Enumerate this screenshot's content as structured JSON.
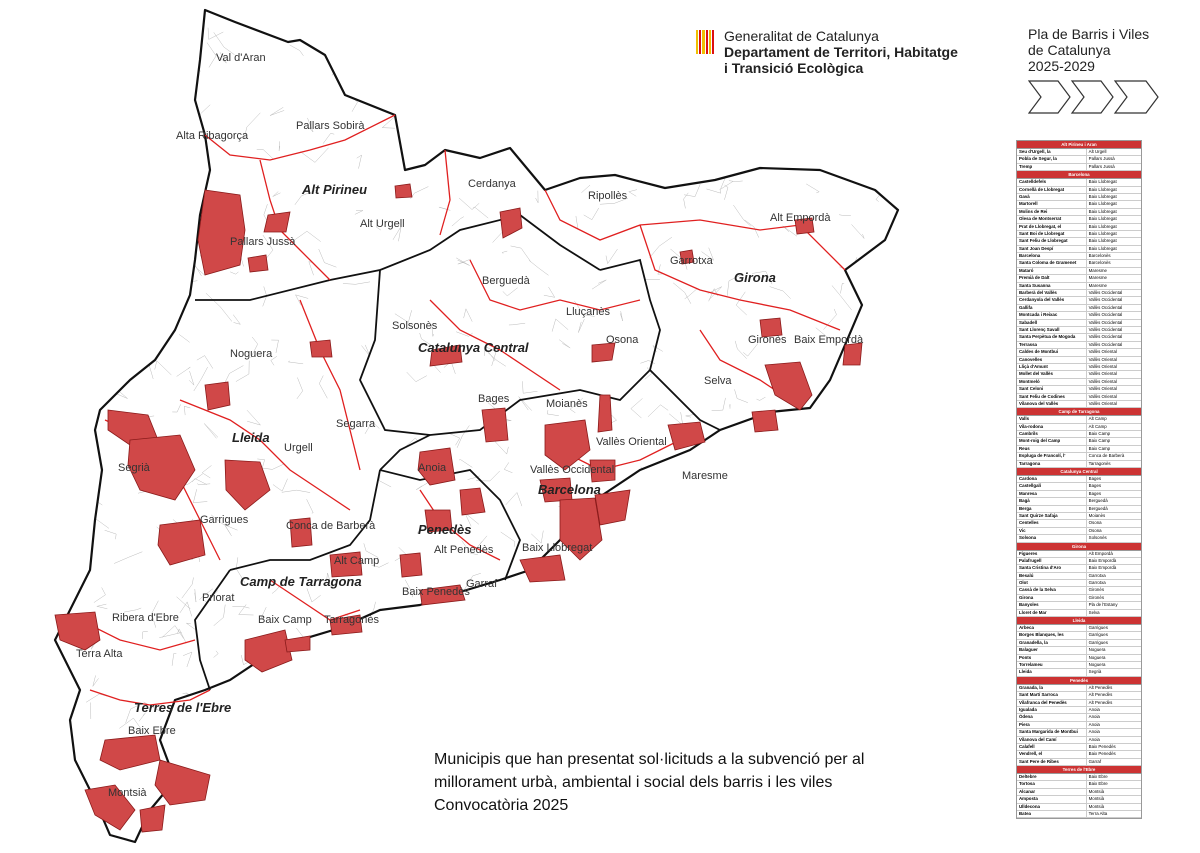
{
  "header": {
    "line1": "Generalitat de Catalunya",
    "line2": "Departament de Territori, Habitatge",
    "line3": "i Transició Ecològica"
  },
  "plan": {
    "line1": "Pla de Barris i Viles",
    "line2": "de Catalunya",
    "line3": "2025-2029"
  },
  "caption": {
    "line1": "Municipis que han presentat sol·licituds a la subvenció per al",
    "line2": "millorament urbà, ambiental i social dels barris i les viles",
    "line3": "Convocatòria 2025"
  },
  "colors": {
    "highlight": "#d04848",
    "border": "#111111",
    "vegueria": "#e02020"
  },
  "vegueries": [
    "Alt Pirineu",
    "Lleida",
    "Catalunya Central",
    "Girona",
    "Barcelona",
    "Penedès",
    "Camp de Tarragona",
    "Terres de l'Ebre"
  ],
  "comarques": [
    "Val d'Aran",
    "Alta Ribagorça",
    "Pallars Sobirà",
    "Pallars Jussà",
    "Alt Urgell",
    "Cerdanya",
    "Ripollès",
    "Alt Empordà",
    "Garrotxa",
    "Berguedà",
    "Solsonès",
    "Lluçanès",
    "Osona",
    "Gironès",
    "Baix Empordà",
    "Selva",
    "Noguera",
    "Bages",
    "Moianès",
    "Segarra",
    "Urgell",
    "Segrià",
    "Garrigues",
    "Anoia",
    "Vallès Occidental",
    "Vallès Oriental",
    "Maresme",
    "Conca de Barberà",
    "Alt Camp",
    "Alt Penedès",
    "Baix Llobregat",
    "Priorat",
    "Baix Camp",
    "Tarragonès",
    "Baix Penedès",
    "Garraf",
    "Ribera d'Ebre",
    "Terra Alta",
    "Baix Ebre",
    "Montsià"
  ],
  "legend": [
    {
      "region": "Alt Pirineu i Aran",
      "rows": [
        [
          "Seu d'Urgell, la",
          "Alt Urgell"
        ],
        [
          "Pobla de Segur, la",
          "Pallars Jussà"
        ],
        [
          "Tremp",
          "Pallars Jussà"
        ]
      ]
    },
    {
      "region": "Barcelona",
      "rows": [
        [
          "Castelldefels",
          "Baix Llobregat"
        ],
        [
          "Cornellà de Llobregat",
          "Baix Llobregat"
        ],
        [
          "Gavà",
          "Baix Llobregat"
        ],
        [
          "Martorell",
          "Baix Llobregat"
        ],
        [
          "Molins de Rei",
          "Baix Llobregat"
        ],
        [
          "Olesa de Montserrat",
          "Baix Llobregat"
        ],
        [
          "Prat de Llobregat, el",
          "Baix Llobregat"
        ],
        [
          "Sant Boi de Llobregat",
          "Baix Llobregat"
        ],
        [
          "Sant Feliu de Llobregat",
          "Baix Llobregat"
        ],
        [
          "Sant Joan Despí",
          "Baix Llobregat"
        ],
        [
          "Barcelona",
          "Barcelonès"
        ],
        [
          "Santa Coloma de Gramenet",
          "Barcelonès"
        ],
        [
          "Mataró",
          "Maresme"
        ],
        [
          "Premià de Dalt",
          "Maresme"
        ],
        [
          "Santa Susanna",
          "Maresme"
        ],
        [
          "Barberà del Vallès",
          "Vallès Occidental"
        ],
        [
          "Cerdanyola del Vallès",
          "Vallès Occidental"
        ],
        [
          "Gallifa",
          "Vallès Occidental"
        ],
        [
          "Montcada i Reixac",
          "Vallès Occidental"
        ],
        [
          "Sabadell",
          "Vallès Occidental"
        ],
        [
          "Sant Llorenç Savall",
          "Vallès Occidental"
        ],
        [
          "Santa Perpètua de Mogoda",
          "Vallès Occidental"
        ],
        [
          "Terrassa",
          "Vallès Occidental"
        ],
        [
          "Caldes de Montbui",
          "Vallès Oriental"
        ],
        [
          "Canovelles",
          "Vallès Oriental"
        ],
        [
          "Lliçà d'Amunt",
          "Vallès Oriental"
        ],
        [
          "Mollet del Vallès",
          "Vallès Oriental"
        ],
        [
          "Montmeló",
          "Vallès Oriental"
        ],
        [
          "Sant Celoni",
          "Vallès Oriental"
        ],
        [
          "Sant Feliu de Codines",
          "Vallès Oriental"
        ],
        [
          "Vilanova del Vallès",
          "Vallès Oriental"
        ]
      ]
    },
    {
      "region": "Camp de Tarragona",
      "rows": [
        [
          "Valls",
          "Alt Camp"
        ],
        [
          "Vila-rodona",
          "Alt Camp"
        ],
        [
          "Cambrils",
          "Baix Camp"
        ],
        [
          "Mont-roig del Camp",
          "Baix Camp"
        ],
        [
          "Reus",
          "Baix Camp"
        ],
        [
          "Espluga de Francolí, l'",
          "Conca de Barberà"
        ],
        [
          "Tarragona",
          "Tarragonès"
        ]
      ]
    },
    {
      "region": "Catalunya Central",
      "rows": [
        [
          "Cardona",
          "Bages"
        ],
        [
          "Castellgalí",
          "Bages"
        ],
        [
          "Manresa",
          "Bages"
        ],
        [
          "Bagà",
          "Berguedà"
        ],
        [
          "Berga",
          "Berguedà"
        ],
        [
          "Sant Quirze Safaja",
          "Moianès"
        ],
        [
          "Centelles",
          "Osona"
        ],
        [
          "Vic",
          "Osona"
        ],
        [
          "Solsona",
          "Solsonès"
        ]
      ]
    },
    {
      "region": "Girona",
      "rows": [
        [
          "Figueres",
          "Alt Empordà"
        ],
        [
          "Palafrugell",
          "Baix Empordà"
        ],
        [
          "Santa Cristina d'Aro",
          "Baix Empordà"
        ],
        [
          "Besalú",
          "Garrotxa"
        ],
        [
          "Olot",
          "Garrotxa"
        ],
        [
          "Cassà de la Selva",
          "Gironès"
        ],
        [
          "Girona",
          "Gironès"
        ],
        [
          "Banyoles",
          "Pla de l'Estany"
        ],
        [
          "Lloret de Mar",
          "Selva"
        ]
      ]
    },
    {
      "region": "Lleida",
      "rows": [
        [
          "Arbeca",
          "Garrigues"
        ],
        [
          "Borges Blanques, les",
          "Garrigues"
        ],
        [
          "Granadella, la",
          "Garrigues"
        ],
        [
          "Balaguer",
          "Noguera"
        ],
        [
          "Ponts",
          "Noguera"
        ],
        [
          "Torrelameu",
          "Noguera"
        ],
        [
          "Lleida",
          "Segrià"
        ]
      ]
    },
    {
      "region": "Penedès",
      "rows": [
        [
          "Granada, la",
          "Alt Penedès"
        ],
        [
          "Sant Martí Sarroca",
          "Alt Penedès"
        ],
        [
          "Vilafranca del Penedès",
          "Alt Penedès"
        ],
        [
          "Igualada",
          "Anoia"
        ],
        [
          "Òdena",
          "Anoia"
        ],
        [
          "Piera",
          "Anoia"
        ],
        [
          "Santa Margarida de Montbui",
          "Anoia"
        ],
        [
          "Vilanova del Camí",
          "Anoia"
        ],
        [
          "Calafell",
          "Baix Penedès"
        ],
        [
          "Vendrell, el",
          "Baix Penedès"
        ],
        [
          "Sant Pere de Ribes",
          "Garraf"
        ]
      ]
    },
    {
      "region": "Terres de l'Ebre",
      "rows": [
        [
          "Deltebre",
          "Baix Ebre"
        ],
        [
          "Tortosa",
          "Baix Ebre"
        ],
        [
          "Alcanar",
          "Montsià"
        ],
        [
          "Amposta",
          "Montsià"
        ],
        [
          "Ulldecona",
          "Montsià"
        ],
        [
          "Batea",
          "Terra Alta"
        ]
      ]
    }
  ]
}
